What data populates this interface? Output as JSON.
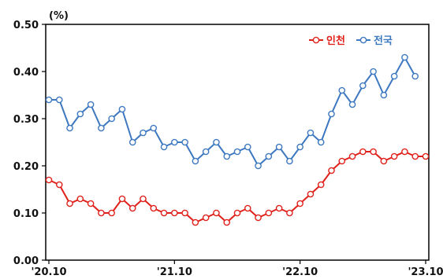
{
  "chart_data": {
    "type": "line",
    "unit_label": "(%)",
    "ylim": [
      0,
      0.5
    ],
    "y_ticks": [
      "0.00",
      "0.10",
      "0.20",
      "0.30",
      "0.40",
      "0.50"
    ],
    "x_ticks": [
      {
        "index": 0,
        "label": "'20.10"
      },
      {
        "index": 12,
        "label": "'21.10"
      },
      {
        "index": 24,
        "label": "'22.10"
      },
      {
        "index": 36,
        "label": "'23.10"
      }
    ],
    "legend_position": "top-right",
    "grid": false,
    "series": [
      {
        "name": "인천",
        "color": "#e0201a",
        "values": [
          0.17,
          0.16,
          0.12,
          0.13,
          0.12,
          0.1,
          0.1,
          0.13,
          0.11,
          0.13,
          0.11,
          0.1,
          0.1,
          0.1,
          0.08,
          0.09,
          0.1,
          0.08,
          0.1,
          0.11,
          0.09,
          0.1,
          0.11,
          0.1,
          0.12,
          0.14,
          0.16,
          0.19,
          0.21,
          0.22,
          0.23,
          0.23,
          0.21,
          0.22,
          0.23,
          0.22,
          0.22
        ]
      },
      {
        "name": "전국",
        "color": "#3d78c0",
        "values": [
          0.34,
          0.34,
          0.28,
          0.31,
          0.33,
          0.28,
          0.3,
          0.32,
          0.25,
          0.27,
          0.28,
          0.24,
          0.25,
          0.25,
          0.21,
          0.23,
          0.25,
          0.22,
          0.23,
          0.24,
          0.2,
          0.22,
          0.24,
          0.21,
          0.24,
          0.27,
          0.25,
          0.31,
          0.36,
          0.33,
          0.37,
          0.4,
          0.35,
          0.39,
          0.43,
          0.39
        ]
      }
    ]
  }
}
